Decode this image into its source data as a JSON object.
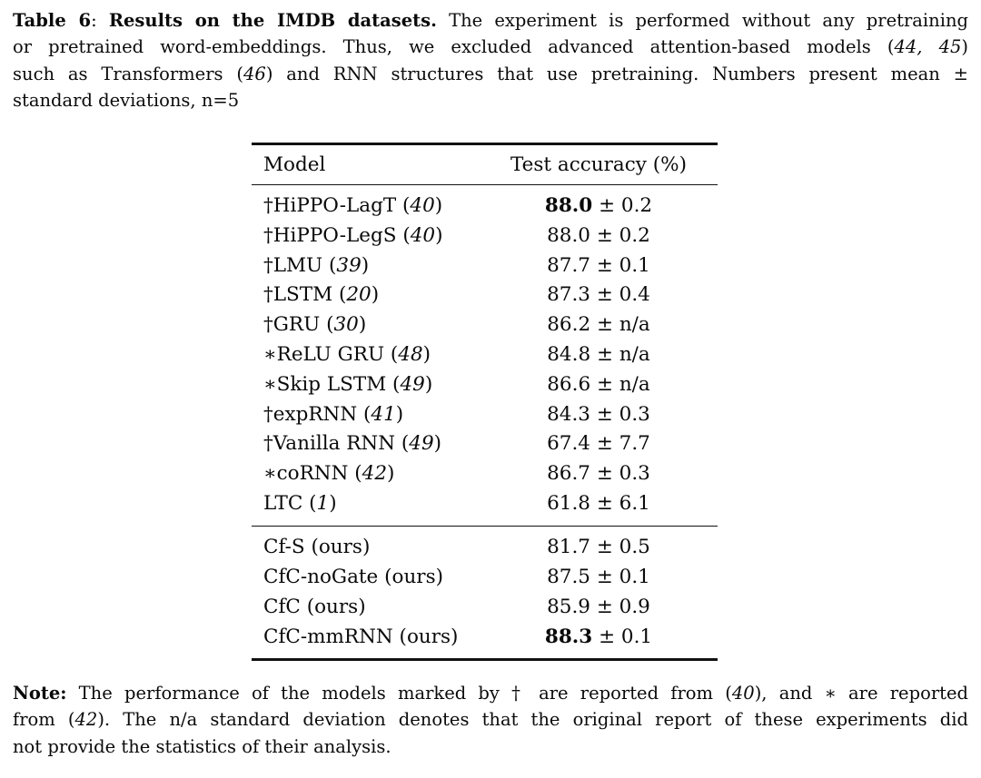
{
  "page": {
    "background": "#ffffff",
    "text_color": "#0a0a0a",
    "rule_color": "#111111"
  },
  "caption": {
    "lines": [
      {
        "justify": true,
        "segments": [
          {
            "t": "Table 6",
            "s": "bold"
          },
          {
            "t": ": ",
            "s": "regular"
          },
          {
            "t": "Results on the IMDB datasets.",
            "s": "bold"
          },
          {
            "t": " The experiment is performed without any pretraining",
            "s": "regular"
          }
        ]
      },
      {
        "justify": true,
        "segments": [
          {
            "t": "or pretrained word-embeddings. Thus, we excluded advanced attention-based models (",
            "s": "regular"
          },
          {
            "t": "44, 45",
            "s": "italic"
          },
          {
            "t": ")",
            "s": "regular"
          }
        ]
      },
      {
        "justify": true,
        "segments": [
          {
            "t": "such as Transformers (",
            "s": "regular"
          },
          {
            "t": "46",
            "s": "italic"
          },
          {
            "t": ") and RNN structures that use pretraining. Numbers present mean ±",
            "s": "regular"
          }
        ]
      },
      {
        "justify": false,
        "segments": [
          {
            "t": "standard deviations, n=5",
            "s": "regular"
          }
        ]
      }
    ]
  },
  "table": {
    "headers": {
      "model": "Model",
      "accuracy": "Test accuracy (%)"
    },
    "plus_minus": "±",
    "groups": [
      {
        "rows": [
          {
            "prefix": "†",
            "name": "HiPPO-LagT",
            "ref": "40",
            "ref_italic": true,
            "value": "88.0",
            "bold": true,
            "std": "0.2"
          },
          {
            "prefix": "†",
            "name": "HiPPO-LegS",
            "ref": "40",
            "ref_italic": true,
            "value": "88.0",
            "bold": false,
            "std": "0.2"
          },
          {
            "prefix": "†",
            "name": "LMU",
            "ref": "39",
            "ref_italic": true,
            "value": "87.7",
            "bold": false,
            "std": "0.1"
          },
          {
            "prefix": "†",
            "name": "LSTM",
            "ref": "20",
            "ref_italic": true,
            "value": "87.3",
            "bold": false,
            "std": "0.4"
          },
          {
            "prefix": "†",
            "name": "GRU",
            "ref": "30",
            "ref_italic": true,
            "value": "86.2",
            "bold": false,
            "std": "n/a"
          },
          {
            "prefix": "∗",
            "name": "ReLU GRU",
            "ref": "48",
            "ref_italic": true,
            "value": "84.8",
            "bold": false,
            "std": "n/a"
          },
          {
            "prefix": "∗",
            "name": "Skip LSTM",
            "ref": "49",
            "ref_italic": true,
            "value": "86.6",
            "bold": false,
            "std": "n/a"
          },
          {
            "prefix": "†",
            "name": "expRNN",
            "ref": "41",
            "ref_italic": true,
            "value": "84.3",
            "bold": false,
            "std": "0.3"
          },
          {
            "prefix": "†",
            "name": "Vanilla RNN",
            "ref": "49",
            "ref_italic": true,
            "value": "67.4",
            "bold": false,
            "std": "7.7"
          },
          {
            "prefix": "∗",
            "name": "coRNN",
            "ref": "42",
            "ref_italic": true,
            "value": "86.7",
            "bold": false,
            "std": "0.3"
          },
          {
            "prefix": "",
            "name": "LTC",
            "ref": "1",
            "ref_italic": true,
            "value": "61.8",
            "bold": false,
            "std": "6.1"
          }
        ]
      },
      {
        "rows": [
          {
            "prefix": "",
            "name": "Cf-S",
            "ref": "ours",
            "ref_italic": false,
            "value": "81.7",
            "bold": false,
            "std": "0.5"
          },
          {
            "prefix": "",
            "name": "CfC-noGate",
            "ref": "ours",
            "ref_italic": false,
            "value": "87.5",
            "bold": false,
            "std": "0.1"
          },
          {
            "prefix": "",
            "name": "CfC",
            "ref": "ours",
            "ref_italic": false,
            "value": "85.9",
            "bold": false,
            "std": "0.9"
          },
          {
            "prefix": "",
            "name": "CfC-mmRNN",
            "ref": "ours",
            "ref_italic": false,
            "value": "88.3",
            "bold": true,
            "std": "0.1"
          }
        ]
      }
    ]
  },
  "note": {
    "lines": [
      {
        "justify": true,
        "segments": [
          {
            "t": "Note:",
            "s": "bold"
          },
          {
            "t": " The performance of the models marked by † are reported from (",
            "s": "regular"
          },
          {
            "t": "40",
            "s": "italic"
          },
          {
            "t": "), and ∗ are reported",
            "s": "regular"
          }
        ]
      },
      {
        "justify": true,
        "segments": [
          {
            "t": "from (",
            "s": "regular"
          },
          {
            "t": "42",
            "s": "italic"
          },
          {
            "t": "). The n/a standard deviation denotes that the original report of these experiments did",
            "s": "regular"
          }
        ]
      },
      {
        "justify": false,
        "segments": [
          {
            "t": "not provide the statistics of their analysis.",
            "s": "regular"
          }
        ]
      }
    ]
  }
}
